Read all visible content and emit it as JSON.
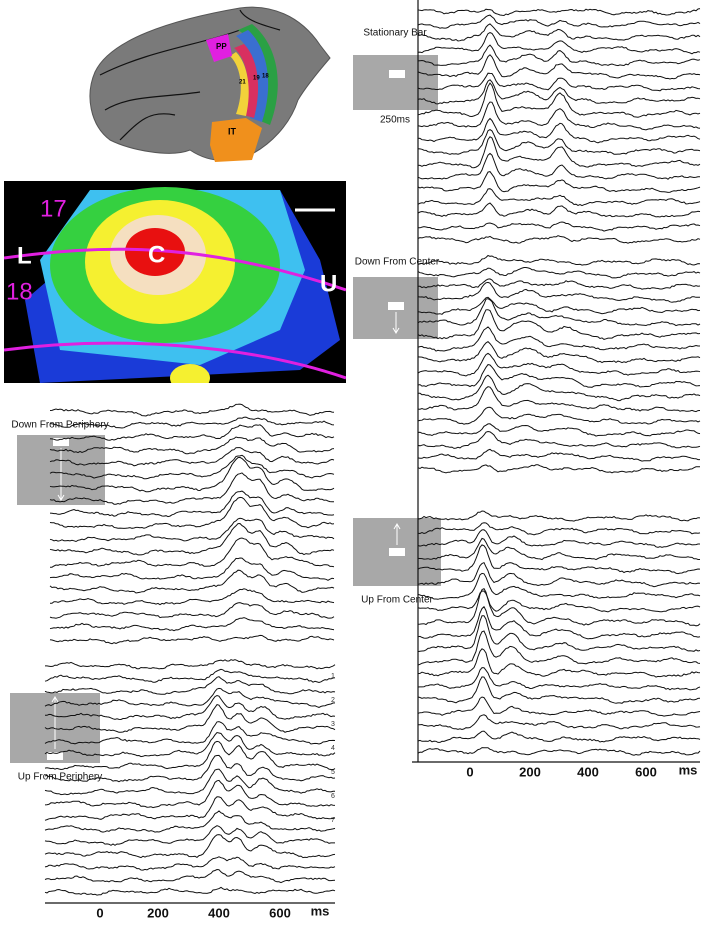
{
  "brain": {
    "areas": [
      "PP",
      "21",
      "19",
      "18",
      "IT"
    ]
  },
  "map": {
    "labels": [
      "17",
      "L",
      "C",
      "18",
      "U"
    ]
  },
  "panels": [
    {
      "title": "Stationary Bar",
      "note": "250ms"
    },
    {
      "title": "Down From Center"
    },
    {
      "title": "Down From Periphery"
    },
    {
      "title": "Up From Center"
    },
    {
      "title": "Up From Periphery"
    }
  ],
  "row_numbers": [
    "1",
    "2",
    "3",
    "4",
    "5",
    "6",
    "7"
  ],
  "axes": [
    {
      "ticks": [
        "0",
        "200",
        "400",
        "600"
      ],
      "unit": "ms"
    },
    {
      "ticks": [
        "0",
        "200",
        "400",
        "600"
      ],
      "unit": "ms"
    }
  ]
}
